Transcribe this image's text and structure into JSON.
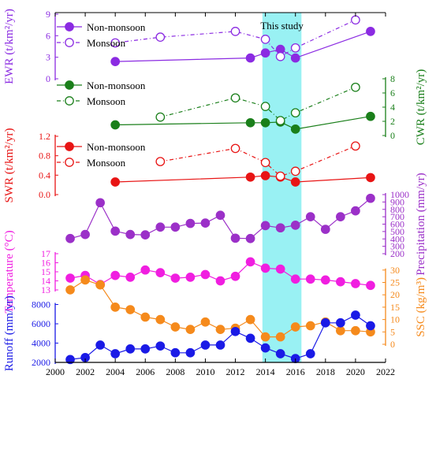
{
  "chart_data": {
    "type": "line",
    "annotation": "This study",
    "shaded_range": [
      2013.8,
      2016.4
    ],
    "x_axis": {
      "range": [
        2000,
        2022
      ],
      "ticks": [
        2000,
        2002,
        2004,
        2006,
        2008,
        2010,
        2012,
        2014,
        2016,
        2018,
        2020,
        2022
      ]
    },
    "panels": [
      {
        "id": "ewr",
        "side": "left",
        "label": "EWR (t/km²/yr)",
        "color": "#8b2be2",
        "range": [
          -1,
          9
        ],
        "ticks": [
          0,
          3,
          6,
          9
        ],
        "legend": [
          "Non-monsoon",
          "Monsoon"
        ],
        "series": [
          {
            "name": "Non-monsoon",
            "style": "filled",
            "x": [
              2004,
              2013,
              2014,
              2015,
              2016,
              2021
            ],
            "y": [
              2.4,
              2.9,
              3.6,
              4.1,
              2.9,
              6.6
            ]
          },
          {
            "name": "Monsoon",
            "style": "open",
            "x": [
              2004,
              2007,
              2012,
              2014,
              2015,
              2016,
              2020
            ],
            "y": [
              5.0,
              5.8,
              6.6,
              5.5,
              3.1,
              4.3,
              8.2
            ]
          }
        ]
      },
      {
        "id": "cwr",
        "side": "right",
        "label": "CWR (t/km²/yr)",
        "color": "#1a7f1a",
        "range": [
          -1,
          9
        ],
        "ticks": [
          0,
          2,
          4,
          6,
          8
        ],
        "legend": [
          "Non-monsoon",
          "Monsoon"
        ],
        "series": [
          {
            "name": "Non-monsoon",
            "style": "filled",
            "x": [
              2004,
              2013,
              2014,
              2015,
              2016,
              2021
            ],
            "y": [
              1.5,
              1.8,
              1.8,
              1.9,
              0.9,
              2.7
            ]
          },
          {
            "name": "Monsoon",
            "style": "open",
            "x": [
              2007,
              2012,
              2014,
              2015,
              2016,
              2020
            ],
            "y": [
              2.6,
              5.3,
              4.1,
              2.1,
              3.2,
              6.8
            ]
          }
        ]
      },
      {
        "id": "swr",
        "side": "left",
        "label": "SWR (t/km²/yr)",
        "color": "#e81414",
        "range": [
          -0.1,
          1.45
        ],
        "ticks": [
          0.0,
          0.4,
          0.8,
          1.2
        ],
        "tick_labels": [
          "0.0",
          "0.4",
          "0.8",
          "1.2"
        ],
        "legend": [
          "Non-monsoon",
          "Monsoon"
        ],
        "series": [
          {
            "name": "Non-monsoon",
            "style": "filled",
            "x": [
              2004,
              2013,
              2014,
              2015,
              2016,
              2021
            ],
            "y": [
              0.26,
              0.36,
              0.39,
              0.36,
              0.26,
              0.35
            ]
          },
          {
            "name": "Monsoon",
            "style": "open",
            "x": [
              2007,
              2012,
              2014,
              2015,
              2016,
              2020
            ],
            "y": [
              0.68,
              0.95,
              0.66,
              0.38,
              0.48,
              1.0
            ]
          }
        ]
      },
      {
        "id": "precip",
        "side": "right",
        "label": "Precipitation (mm/yr)",
        "color": "#9b30c8",
        "range": [
          150,
          1050
        ],
        "ticks": [
          200,
          300,
          400,
          500,
          600,
          700,
          800,
          900,
          1000
        ],
        "series": [
          {
            "name": "",
            "style": "filled",
            "x": [
              2001,
              2002,
              2003,
              2004,
              2005,
              2006,
              2007,
              2008,
              2009,
              2010,
              2011,
              2012,
              2013,
              2014,
              2015,
              2016,
              2017,
              2018,
              2019,
              2020,
              2021
            ],
            "y": [
              405,
              460,
              890,
              505,
              460,
              455,
              560,
              560,
              610,
              615,
              720,
              410,
              405,
              580,
              550,
              585,
              700,
              530,
              700,
              780,
              950
            ]
          }
        ]
      },
      {
        "id": "temp",
        "side": "left",
        "label": "Temperature (°C)",
        "color": "#f01ee0",
        "range": [
          12.8,
          17.2
        ],
        "ticks": [
          13,
          14,
          15,
          16,
          17
        ],
        "series": [
          {
            "name": "",
            "style": "filled",
            "x": [
              2001,
              2002,
              2003,
              2004,
              2005,
              2006,
              2007,
              2008,
              2009,
              2010,
              2011,
              2012,
              2013,
              2014,
              2015,
              2016,
              2017,
              2018,
              2019,
              2020,
              2021
            ],
            "y": [
              14.3,
              14.6,
              13.6,
              14.6,
              14.4,
              15.2,
              14.9,
              14.3,
              14.4,
              14.7,
              14.0,
              14.5,
              16.1,
              15.4,
              15.3,
              14.2,
              14.2,
              14.1,
              13.9,
              13.7,
              13.5
            ]
          }
        ]
      },
      {
        "id": "ssc",
        "side": "right",
        "label": "SSC (kg/m³)",
        "color": "#f58a1c",
        "range": [
          -4,
          30
        ],
        "ticks": [
          0,
          5,
          10,
          15,
          20,
          25,
          30
        ],
        "series": [
          {
            "name": "",
            "style": "filled",
            "x": [
              2001,
              2002,
              2003,
              2004,
              2005,
              2006,
              2007,
              2008,
              2009,
              2010,
              2011,
              2012,
              2013,
              2014,
              2015,
              2016,
              2017,
              2018,
              2019,
              2020,
              2021
            ],
            "y": [
              22,
              26,
              24,
              15,
              14,
              11,
              10,
              7,
              6,
              9,
              6,
              6.5,
              10,
              3,
              3,
              7,
              7.5,
              9,
              5.5,
              5.5,
              5
            ]
          }
        ]
      },
      {
        "id": "runoff",
        "side": "left",
        "label": "Runoff (mm/yr)",
        "color": "#1a1ae6",
        "range": [
          2000,
          9000
        ],
        "ticks": [
          2000,
          4000,
          6000,
          8000
        ],
        "series": [
          {
            "name": "",
            "style": "filled",
            "x": [
              2001,
              2002,
              2003,
              2004,
              2005,
              2006,
              2007,
              2008,
              2009,
              2010,
              2011,
              2012,
              2013,
              2014,
              2015,
              2016,
              2017,
              2018,
              2019,
              2020,
              2021
            ],
            "y": [
              2300,
              2500,
              3800,
              2900,
              3400,
              3400,
              3700,
              3000,
              3000,
              3800,
              3800,
              5200,
              4500,
              3500,
              2900,
              2400,
              2900,
              6100,
              6100,
              6900,
              5800
            ]
          }
        ]
      }
    ]
  }
}
